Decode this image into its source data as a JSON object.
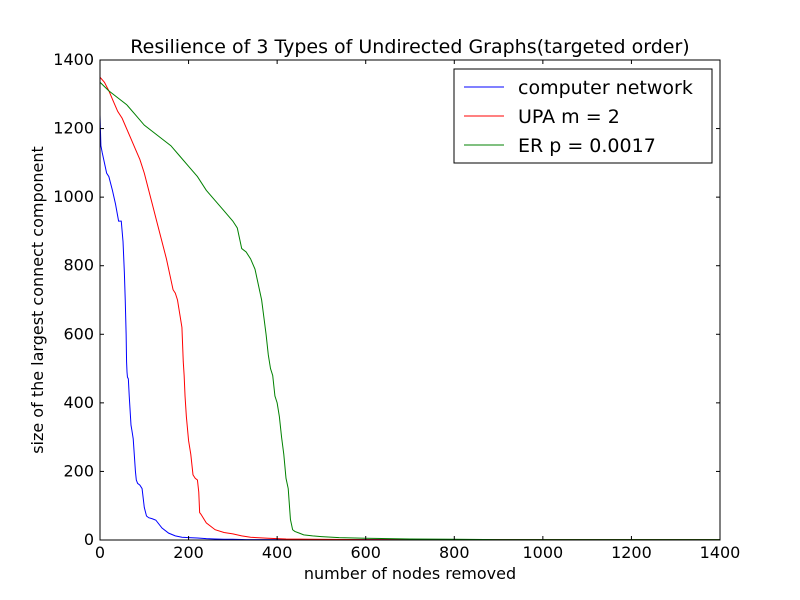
{
  "chart_data": {
    "type": "line",
    "title": "Resilience of 3 Types of Undirected Graphs(targeted order)",
    "xlabel": "number of nodes removed",
    "ylabel": "size of the largest connect component",
    "xlim": [
      0,
      1400
    ],
    "ylim": [
      0,
      1400
    ],
    "xticks": [
      0,
      200,
      400,
      600,
      800,
      1000,
      1200,
      1400
    ],
    "yticks": [
      0,
      200,
      400,
      600,
      800,
      1000,
      1200,
      1400
    ],
    "grid": false,
    "legend_position": "top-right",
    "series": [
      {
        "name": "computer network",
        "color": "#0000ff",
        "x": [
          0,
          2,
          5,
          10,
          15,
          20,
          28,
          35,
          42,
          48,
          52,
          55,
          57,
          59,
          60,
          61,
          62,
          64,
          66,
          70,
          72,
          75,
          80,
          82,
          85,
          90,
          95,
          100,
          105,
          110,
          118,
          126,
          140,
          155,
          170,
          185,
          200,
          220,
          240,
          260,
          280,
          300,
          330,
          360,
          400,
          500,
          600,
          700,
          800,
          900,
          1000,
          1100,
          1200,
          1300,
          1400
        ],
        "y": [
          1240,
          1150,
          1130,
          1100,
          1070,
          1060,
          1020,
          980,
          930,
          930,
          870,
          780,
          700,
          600,
          520,
          490,
          475,
          470,
          420,
          335,
          320,
          295,
          200,
          175,
          165,
          160,
          150,
          95,
          70,
          65,
          62,
          58,
          35,
          20,
          12,
          8,
          7,
          6,
          4,
          3,
          2,
          2,
          1,
          1,
          1,
          1,
          1,
          1,
          1,
          1,
          1,
          1,
          1,
          1,
          1
        ]
      },
      {
        "name": "UPA m = 2",
        "color": "#ff0000",
        "x": [
          0,
          10,
          20,
          30,
          40,
          50,
          60,
          70,
          80,
          90,
          100,
          110,
          120,
          130,
          140,
          150,
          160,
          165,
          170,
          175,
          180,
          185,
          188,
          190,
          192,
          195,
          200,
          205,
          210,
          215,
          220,
          223,
          225,
          228,
          240,
          260,
          280,
          300,
          320,
          340,
          380,
          420,
          480,
          600,
          800,
          1000,
          1200,
          1400
        ],
        "y": [
          1350,
          1335,
          1310,
          1280,
          1250,
          1230,
          1200,
          1170,
          1140,
          1110,
          1070,
          1020,
          970,
          920,
          870,
          820,
          760,
          730,
          720,
          700,
          660,
          620,
          520,
          480,
          420,
          360,
          290,
          250,
          190,
          180,
          175,
          140,
          80,
          75,
          50,
          30,
          22,
          18,
          12,
          8,
          5,
          3,
          2,
          1,
          1,
          1,
          1,
          1
        ]
      },
      {
        "name": "ER p = 0.0017",
        "color": "#008000",
        "x": [
          0,
          20,
          40,
          60,
          80,
          100,
          120,
          140,
          160,
          180,
          200,
          220,
          240,
          260,
          280,
          300,
          310,
          315,
          320,
          330,
          340,
          350,
          360,
          365,
          370,
          375,
          380,
          385,
          390,
          395,
          400,
          405,
          410,
          415,
          420,
          425,
          430,
          435,
          440,
          450,
          460,
          480,
          500,
          540,
          600,
          700,
          800,
          900,
          1000,
          1200,
          1400
        ],
        "y": [
          1335,
          1310,
          1290,
          1270,
          1240,
          1210,
          1190,
          1170,
          1150,
          1120,
          1090,
          1060,
          1020,
          990,
          960,
          930,
          910,
          880,
          850,
          840,
          820,
          790,
          730,
          700,
          650,
          600,
          540,
          500,
          480,
          420,
          400,
          360,
          300,
          250,
          180,
          150,
          60,
          30,
          25,
          20,
          15,
          12,
          10,
          7,
          5,
          3,
          2,
          1,
          1,
          1,
          1
        ]
      }
    ]
  }
}
